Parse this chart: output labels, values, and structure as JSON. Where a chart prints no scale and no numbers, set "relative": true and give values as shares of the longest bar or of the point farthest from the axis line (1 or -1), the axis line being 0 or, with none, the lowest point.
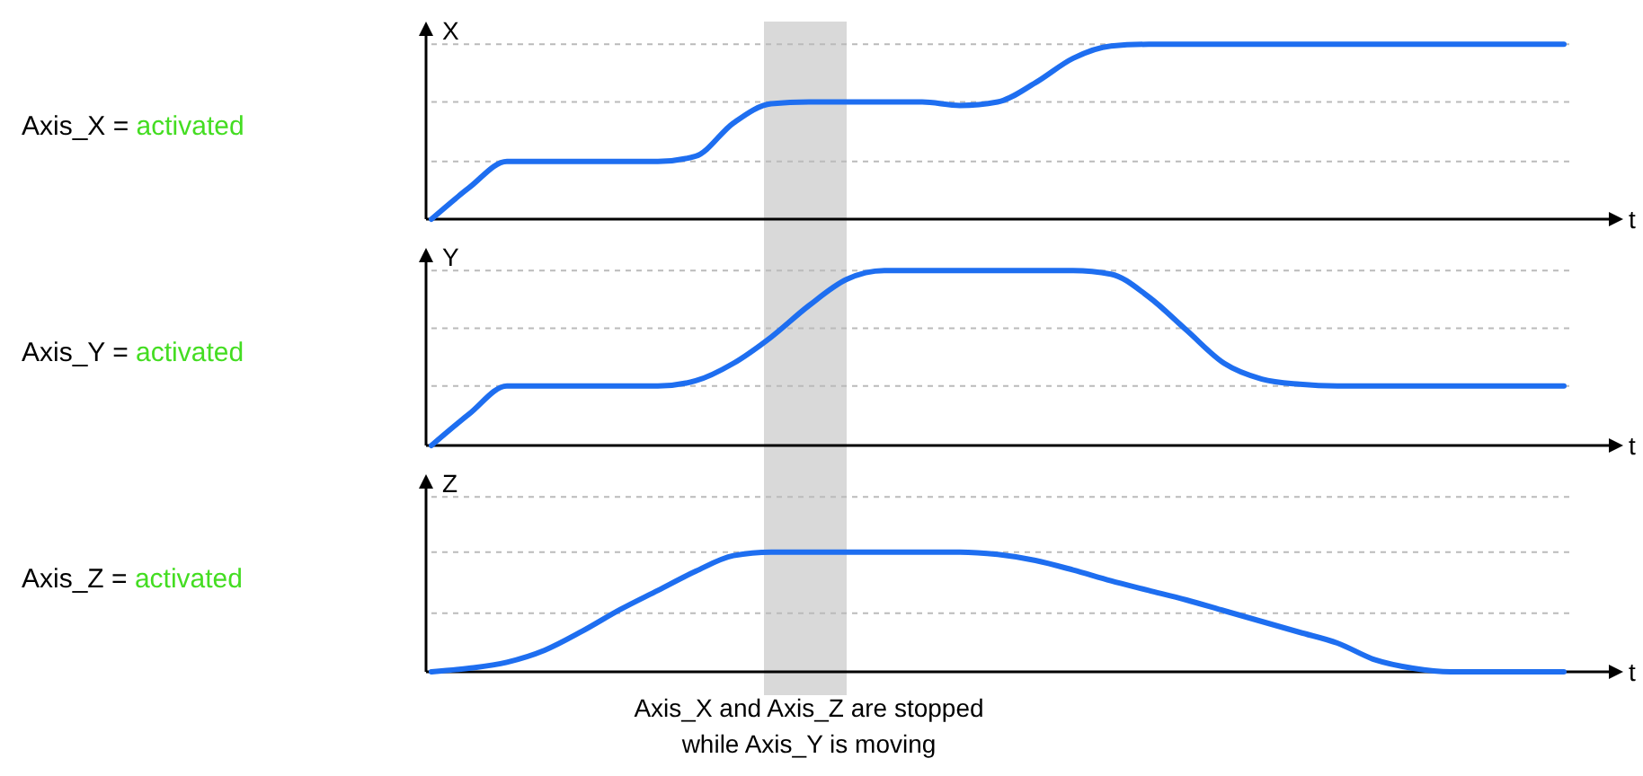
{
  "chart_data": [
    {
      "type": "line",
      "ylabel": "X",
      "xlabel": "t",
      "relative": true,
      "line_style": "solid",
      "categories": [
        null,
        null,
        null,
        null,
        null,
        null,
        null,
        null,
        null,
        null,
        null,
        null,
        null,
        null,
        null,
        null,
        null,
        null,
        null,
        null,
        null,
        null,
        null,
        null,
        null,
        null,
        null,
        null,
        null,
        null,
        null
      ],
      "series": [
        {
          "color": "#1e6ef0",
          "values": [
            0,
            0.18,
            0.33,
            0.33,
            0.33,
            0.33,
            0.33,
            0.36,
            0.55,
            0.66,
            0.67,
            0.67,
            0.67,
            0.67,
            0.65,
            0.67,
            0.78,
            0.92,
            0.99,
            1,
            1,
            1,
            1,
            1,
            1,
            1,
            1,
            1,
            1,
            1,
            1
          ]
        }
      ],
      "ref_lines": [
        {
          "axis": "y",
          "value": 0.33,
          "color": "#bbbbbb",
          "line_style": "dashed"
        },
        {
          "axis": "y",
          "value": 0.67,
          "color": "#bbbbbb",
          "line_style": "dashed"
        },
        {
          "axis": "y",
          "value": 1,
          "color": "#bbbbbb",
          "line_style": "dashed"
        }
      ],
      "annotations": [
        "Axis_X = activated"
      ]
    },
    {
      "type": "line",
      "ylabel": "Y",
      "xlabel": "t",
      "relative": true,
      "line_style": "solid",
      "categories": [
        null,
        null,
        null,
        null,
        null,
        null,
        null,
        null,
        null,
        null,
        null,
        null,
        null,
        null,
        null,
        null,
        null,
        null,
        null,
        null,
        null,
        null,
        null,
        null,
        null,
        null,
        null,
        null,
        null,
        null,
        null
      ],
      "series": [
        {
          "color": "#1e6ef0",
          "values": [
            0,
            0.18,
            0.34,
            0.34,
            0.34,
            0.34,
            0.34,
            0.37,
            0.47,
            0.62,
            0.8,
            0.95,
            1,
            1,
            1,
            1,
            1,
            1,
            0.98,
            0.85,
            0.66,
            0.47,
            0.38,
            0.35,
            0.34,
            0.34,
            0.34,
            0.34,
            0.34,
            0.34,
            0.34
          ]
        }
      ],
      "ref_lines": [
        {
          "axis": "y",
          "value": 0.34,
          "color": "#bbbbbb",
          "line_style": "dashed"
        },
        {
          "axis": "y",
          "value": 0.67,
          "color": "#bbbbbb",
          "line_style": "dashed"
        },
        {
          "axis": "y",
          "value": 1,
          "color": "#bbbbbb",
          "line_style": "dashed"
        }
      ],
      "annotations": [
        "Axis_Y = activated"
      ]
    },
    {
      "type": "line",
      "ylabel": "Z",
      "xlabel": "t",
      "relative": true,
      "line_style": "solid",
      "categories": [
        null,
        null,
        null,
        null,
        null,
        null,
        null,
        null,
        null,
        null,
        null,
        null,
        null,
        null,
        null,
        null,
        null,
        null,
        null,
        null,
        null,
        null,
        null,
        null,
        null,
        null,
        null,
        null,
        null,
        null,
        null
      ],
      "series": [
        {
          "color": "#1e6ef0",
          "values": [
            0,
            0.03,
            0.08,
            0.18,
            0.34,
            0.52,
            0.68,
            0.84,
            0.97,
            1,
            1,
            1,
            1,
            1,
            1,
            0.98,
            0.93,
            0.85,
            0.76,
            0.68,
            0.6,
            0.51,
            0.42,
            0.33,
            0.24,
            0.1,
            0.03,
            0,
            0,
            0,
            0
          ]
        }
      ],
      "ref_lines": [
        {
          "axis": "y",
          "value": 0.49,
          "color": "#bbbbbb",
          "line_style": "dashed"
        },
        {
          "axis": "y",
          "value": 1,
          "color": "#bbbbbb",
          "line_style": "dashed"
        },
        {
          "axis": "y",
          "value": 1.46,
          "color": "#bbbbbb",
          "line_style": "dashed"
        }
      ],
      "annotations": [
        "Axis_Z = activated",
        "Axis_X and Axis_Z are stopped",
        "while Axis_Y is moving"
      ]
    }
  ]
}
